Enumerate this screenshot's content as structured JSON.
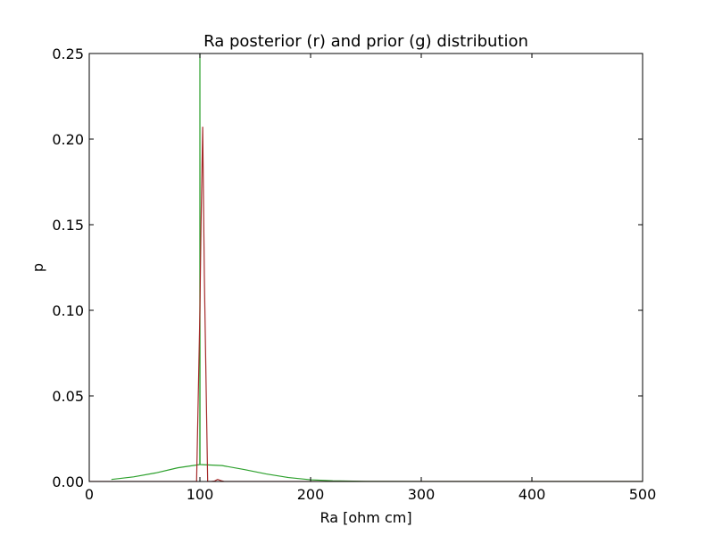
{
  "chart_data": {
    "type": "line",
    "title": "Ra posterior (r) and prior (g) distribution",
    "xlabel": "Ra [ohm cm]",
    "ylabel": "p",
    "xlim": [
      0,
      500
    ],
    "ylim": [
      0,
      0.25
    ],
    "xticks": [
      "0",
      "100",
      "200",
      "300",
      "400",
      "500"
    ],
    "yticks": [
      "0.00",
      "0.05",
      "0.10",
      "0.15",
      "0.20",
      "0.25"
    ],
    "grid": false,
    "series": [
      {
        "color": "#2ca02c",
        "x": [
          20,
          40,
          60,
          80,
          99.9,
          100,
          100.1,
          120,
          140,
          160,
          180,
          200,
          220,
          250,
          300,
          350,
          400,
          450,
          500
        ],
        "y": [
          0.0012,
          0.0027,
          0.005,
          0.008,
          0.0099,
          0.25,
          0.0099,
          0.0093,
          0.007,
          0.0044,
          0.0023,
          0.001,
          0.0004,
          0.0001,
          0.0,
          0.0,
          0.0,
          0.0,
          0.0
        ]
      },
      {
        "color": "#a52a2a",
        "x": [
          0,
          96,
          97,
          98.5,
          100,
          101,
          102.5,
          104,
          107,
          110,
          113,
          116,
          119,
          122,
          125,
          200,
          300,
          400,
          500
        ],
        "y": [
          0.0,
          0.0,
          0.0,
          0.05,
          0.1,
          0.15,
          0.207,
          0.12,
          0.0,
          0.0,
          0.0002,
          0.0012,
          0.0005,
          0.0,
          0.0,
          0.0,
          0.0,
          0.0,
          0.0
        ]
      }
    ]
  }
}
